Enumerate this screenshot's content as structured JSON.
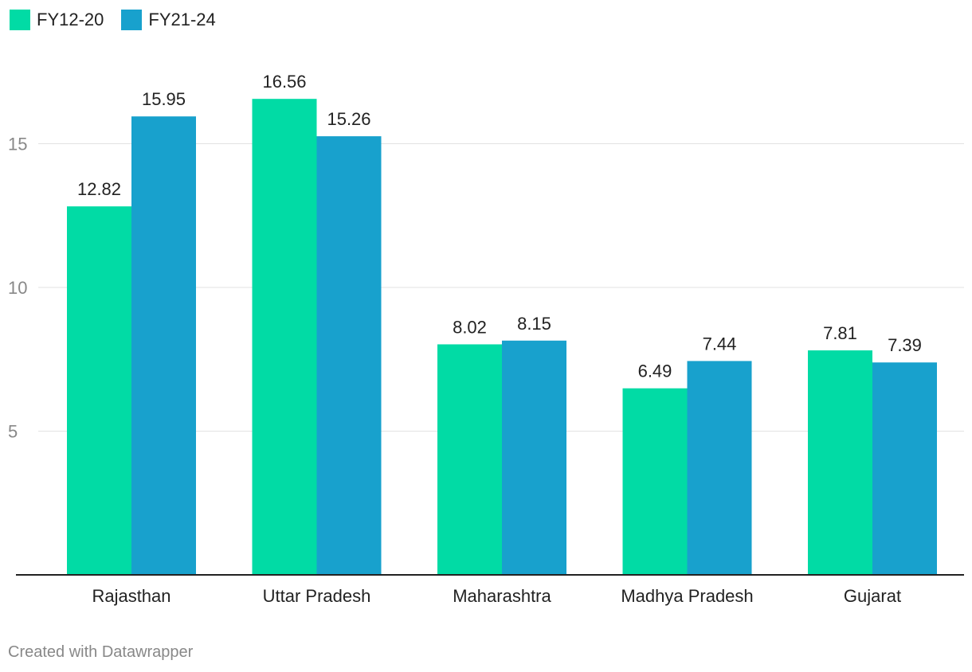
{
  "chart_data": {
    "type": "bar",
    "categories": [
      "Rajasthan",
      "Uttar Pradesh",
      "Maharashtra",
      "Madhya Pradesh",
      "Gujarat"
    ],
    "series": [
      {
        "name": "FY12-20",
        "color": "#01dba5",
        "values": [
          12.82,
          16.56,
          8.02,
          6.49,
          7.81
        ]
      },
      {
        "name": "FY21-24",
        "color": "#18a1cd",
        "values": [
          15.95,
          15.26,
          8.15,
          7.44,
          7.39
        ]
      }
    ],
    "yticks": [
      5,
      10,
      15
    ],
    "ylim": [
      0,
      18
    ],
    "grid": true,
    "legend_position": "top-left",
    "data_labels": true
  },
  "credit": "Created with Datawrapper"
}
